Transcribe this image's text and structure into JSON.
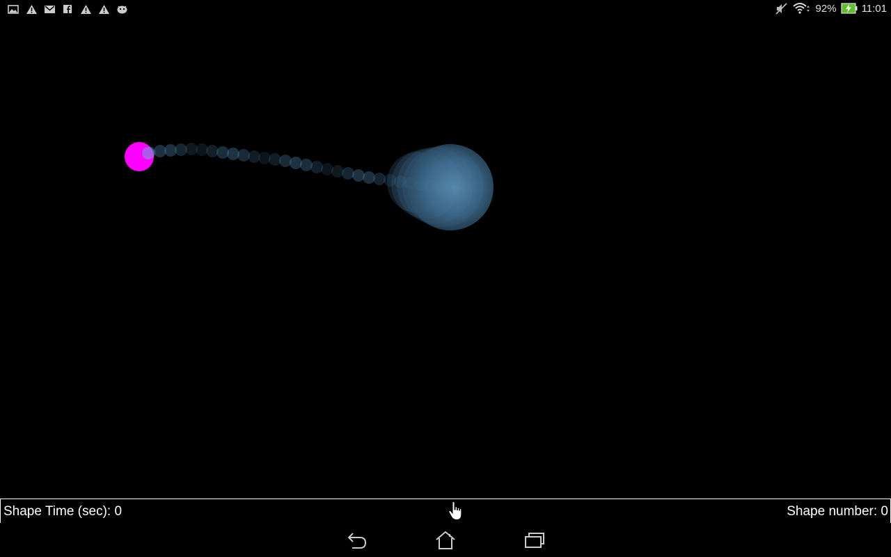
{
  "status_bar": {
    "notification_icons": [
      "image-icon",
      "warning-icon",
      "gmail-icon",
      "facebook-icon",
      "warning-icon",
      "warning-icon",
      "android-icon"
    ],
    "battery_percent": "92%",
    "time": "11:01"
  },
  "info_bar": {
    "shape_time_label": "Shape Time (sec): 0",
    "shape_number_label": "Shape number: 0"
  },
  "nav_bar": {
    "back": "back-icon",
    "home": "home-icon",
    "recents": "recents-icon"
  },
  "colors": {
    "background": "#000000",
    "target_dot": "#ff00ff",
    "trail": "#4a7fa6",
    "battery": "#5fbf2a",
    "info_border": "#ffffff"
  }
}
